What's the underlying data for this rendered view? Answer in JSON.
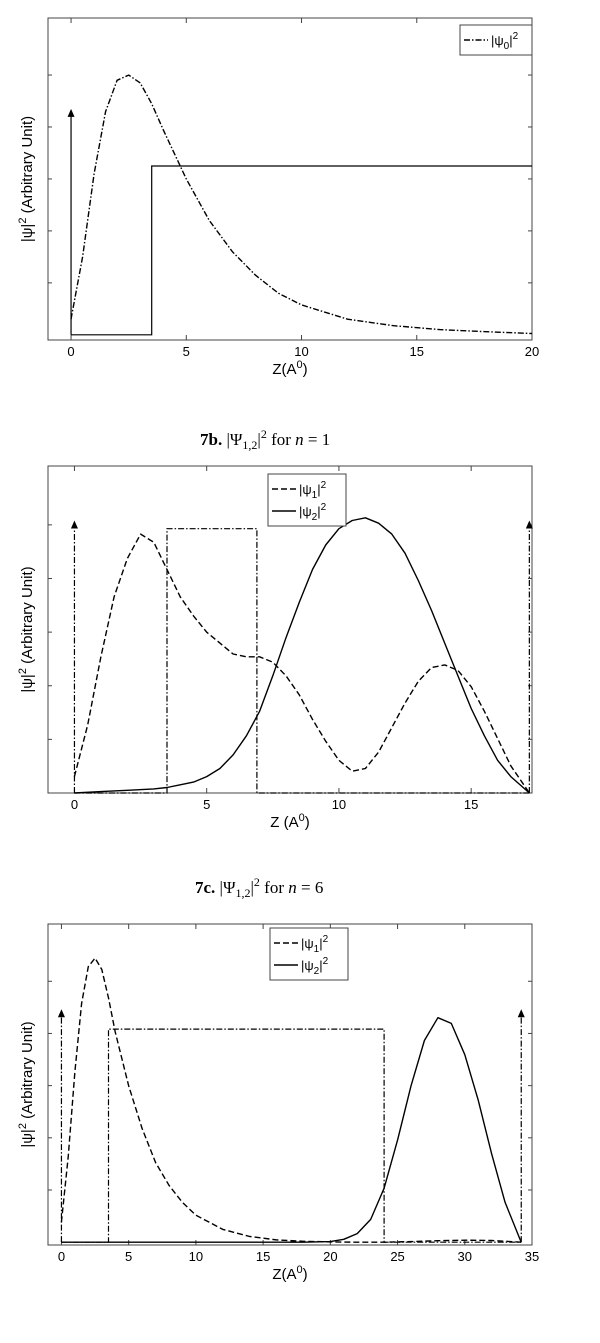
{
  "chart_data": [
    {
      "type": "line",
      "caption": {
        "label": "",
        "text": ""
      },
      "xlabel": "Z(A",
      "xlabel_sup": "0",
      "xlabel_close": ")",
      "ylabel": "|ψ|",
      "ylabel_sup": "2",
      "ylabel_rest": " (Arbitrary Unit)",
      "xlim": [
        -1,
        20
      ],
      "xticks": [
        0,
        5,
        10,
        15,
        20
      ],
      "legend_position": "top-right",
      "series": [
        {
          "name": "|ψ0|²",
          "label_main": "|ψ",
          "label_sub": "0",
          "label_tail": "|",
          "label_sup": "2",
          "style": "dashdot",
          "x": [
            0,
            0.5,
            1,
            1.5,
            2,
            2.5,
            3,
            3.5,
            4,
            5,
            6,
            7,
            8,
            9,
            10,
            12,
            14,
            16,
            18,
            20
          ],
          "y": [
            0.06,
            0.3,
            0.62,
            0.86,
            0.98,
            1.0,
            0.97,
            0.89,
            0.79,
            0.6,
            0.44,
            0.32,
            0.23,
            0.16,
            0.115,
            0.06,
            0.035,
            0.02,
            0.012,
            0.005
          ]
        }
      ],
      "potential": {
        "x": [
          0,
          3.5,
          3.5,
          20
        ],
        "y": [
          0,
          0,
          0.65,
          0.65
        ],
        "style": "solid"
      },
      "arrows": [
        {
          "x": 0,
          "y_from": 0,
          "y_to": 0.87
        }
      ]
    },
    {
      "type": "line",
      "caption": {
        "label": "7b.",
        "text": "|Ψ1,2|² for  n = 1"
      },
      "caption_parts": {
        "label": "7b.",
        "pre": "|Ψ",
        "sub": "1,2",
        "mid": "|",
        "sup": "2",
        "post": " for ",
        "var": "n",
        "eq": " = 1"
      },
      "xlabel": "Z (A",
      "xlabel_sup": "0",
      "xlabel_close": ")",
      "ylabel": "|ψ|",
      "ylabel_sup": "2",
      "ylabel_rest": " (Arbitrary Unit)",
      "xlim": [
        -1,
        17.3
      ],
      "xticks": [
        0,
        5,
        10,
        15
      ],
      "legend_position": "top-center",
      "series": [
        {
          "name": "|ψ1|²",
          "label_main": "|ψ",
          "label_sub": "1",
          "label_tail": "|",
          "label_sup": "2",
          "style": "dashed",
          "x": [
            0,
            0.5,
            1,
            1.5,
            2,
            2.5,
            3,
            3.5,
            4,
            4.5,
            5,
            5.5,
            6,
            6.5,
            7,
            7.5,
            8,
            8.5,
            9,
            9.5,
            10,
            10.5,
            11,
            11.5,
            12,
            12.5,
            13,
            13.5,
            14,
            14.5,
            15,
            15.5,
            16,
            16.5,
            17.2
          ],
          "y": [
            0.06,
            0.25,
            0.5,
            0.72,
            0.86,
            0.95,
            0.92,
            0.82,
            0.72,
            0.65,
            0.59,
            0.55,
            0.51,
            0.5,
            0.5,
            0.48,
            0.43,
            0.36,
            0.27,
            0.19,
            0.12,
            0.08,
            0.09,
            0.15,
            0.24,
            0.33,
            0.41,
            0.46,
            0.47,
            0.45,
            0.39,
            0.3,
            0.2,
            0.1,
            0.0
          ]
        },
        {
          "name": "|ψ2|²",
          "label_main": "|ψ",
          "label_sub": "2",
          "label_tail": "|",
          "label_sup": "2",
          "style": "solid",
          "x": [
            0,
            1,
            2,
            3,
            3.5,
            4,
            4.5,
            5,
            5.5,
            6,
            6.5,
            7,
            7.5,
            8,
            8.5,
            9,
            9.5,
            10,
            10.5,
            11,
            11.5,
            12,
            12.5,
            13,
            13.5,
            14,
            14.5,
            15,
            15.5,
            16,
            16.5,
            17.2
          ],
          "y": [
            0.0,
            0.005,
            0.01,
            0.015,
            0.02,
            0.03,
            0.04,
            0.06,
            0.09,
            0.14,
            0.21,
            0.3,
            0.43,
            0.57,
            0.7,
            0.82,
            0.91,
            0.97,
            1.0,
            1.01,
            0.99,
            0.95,
            0.88,
            0.78,
            0.67,
            0.55,
            0.43,
            0.31,
            0.21,
            0.12,
            0.06,
            0.0
          ]
        }
      ],
      "potential": {
        "x": [
          0,
          3.5,
          3.5,
          6.9,
          6.9,
          17.2
        ],
        "y": [
          0,
          0,
          0.97,
          0.97,
          0,
          0
        ],
        "style": "dashdot"
      },
      "arrows": [
        {
          "x": 0,
          "y_from": 0,
          "y_to": 1.0
        },
        {
          "x": 17.2,
          "y_from": 0,
          "y_to": 1.0
        }
      ]
    },
    {
      "type": "line",
      "caption": {
        "label": "7c.",
        "text": "|Ψ1,2|² for  n = 6"
      },
      "caption_parts": {
        "label": "7c.",
        "pre": "|Ψ",
        "sub": "1,2",
        "mid": "|",
        "sup": "2",
        "post": " for ",
        "var": "n",
        "eq": " = 6"
      },
      "xlabel": "Z(A",
      "xlabel_sup": "0",
      "xlabel_close": ")",
      "ylabel": "|ψ|",
      "ylabel_sup": "2",
      "ylabel_rest": " (Arbitrary Unit)",
      "xlim": [
        -1,
        35
      ],
      "xticks": [
        0,
        5,
        10,
        15,
        20,
        25,
        30,
        35
      ],
      "legend_position": "top-center",
      "series": [
        {
          "name": "|ψ1|²",
          "label_main": "|ψ",
          "label_sub": "1",
          "label_tail": "|",
          "label_sup": "2",
          "style": "dashed",
          "x": [
            0,
            0.5,
            1,
            1.5,
            2,
            2.5,
            3,
            3.5,
            4,
            5,
            6,
            7,
            8,
            9,
            10,
            12,
            14,
            16,
            18,
            20,
            22,
            24,
            26,
            28,
            30,
            32,
            34.2
          ],
          "y": [
            0.07,
            0.3,
            0.6,
            0.84,
            0.97,
            1.0,
            0.96,
            0.86,
            0.74,
            0.55,
            0.4,
            0.28,
            0.2,
            0.14,
            0.095,
            0.045,
            0.02,
            0.008,
            0.003,
            0.001,
            0.0,
            0.0,
            0.002,
            0.005,
            0.007,
            0.006,
            0.0
          ]
        },
        {
          "name": "|ψ2|²",
          "label_main": "|ψ",
          "label_sub": "2",
          "label_tail": "|",
          "label_sup": "2",
          "style": "solid",
          "x": [
            0,
            10,
            18,
            20,
            21,
            22,
            23,
            24,
            25,
            26,
            27,
            28,
            29,
            30,
            31,
            32,
            33,
            34.2
          ],
          "y": [
            0.0,
            0.0,
            0.0,
            0.002,
            0.01,
            0.03,
            0.08,
            0.19,
            0.36,
            0.55,
            0.71,
            0.79,
            0.77,
            0.66,
            0.5,
            0.31,
            0.14,
            0.0
          ]
        }
      ],
      "potential": {
        "x": [
          0,
          3.5,
          3.5,
          24,
          24,
          34.2
        ],
        "y": [
          0,
          0,
          0.75,
          0.75,
          0,
          0
        ],
        "style": "dashdot"
      },
      "arrows": [
        {
          "x": 0,
          "y_from": 0,
          "y_to": 0.82
        },
        {
          "x": 34.2,
          "y_from": 0,
          "y_to": 0.82
        }
      ]
    }
  ]
}
